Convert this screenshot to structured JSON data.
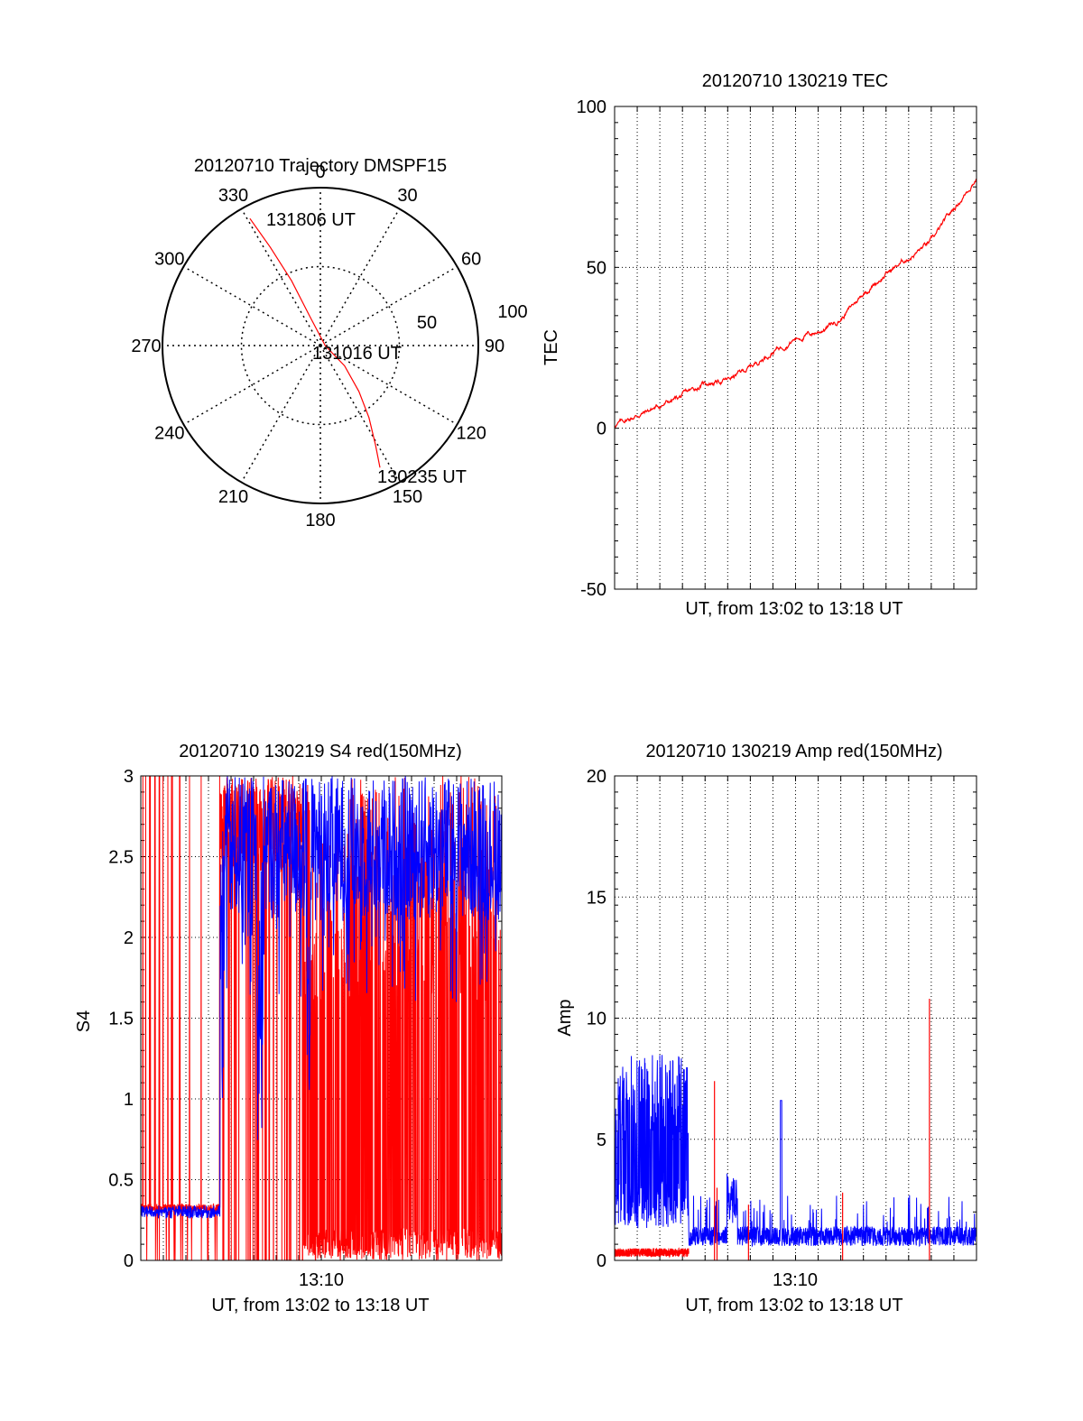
{
  "colors": {
    "red": "#ff0000",
    "blue": "#0000ff",
    "axis": "#000000",
    "background": "#ffffff"
  },
  "chart_data": [
    {
      "type": "polar",
      "title": "20120710 Trajectory DMSPF15",
      "angle_labels": [
        "0",
        "30",
        "60",
        "90",
        "120",
        "150",
        "180",
        "210",
        "240",
        "270",
        "300",
        "330"
      ],
      "radial_labels": [
        "50",
        "100"
      ],
      "rlim": [
        0,
        100
      ],
      "grid": true,
      "series": [
        {
          "color": "red",
          "azimuth": [
            154,
            151,
            146,
            140,
            130,
            90,
            340,
            336,
            333,
            331
          ],
          "zenith": [
            86,
            72,
            55,
            38,
            20,
            3,
            20,
            45,
            70,
            92
          ]
        }
      ],
      "annotations": [
        {
          "text": "131806 UT",
          "azimuth": 331,
          "zenith": 92
        },
        {
          "text": "131016 UT",
          "azimuth": 90,
          "zenith": 3
        },
        {
          "text": "130235 UT",
          "azimuth": 154,
          "zenith": 86
        }
      ]
    },
    {
      "type": "line",
      "title": "20120710 130219 TEC",
      "xlabel": "UT, from 13:02 to 13:18 UT",
      "ylabel": "TEC",
      "xlim": [
        "13:02",
        "13:18"
      ],
      "ylim": [
        -50,
        100
      ],
      "yticks": [
        "-50",
        "0",
        "50",
        "100"
      ],
      "grid": true,
      "series": [
        {
          "color": "red",
          "x": [
            "13:02",
            "13:03",
            "13:04",
            "13:05",
            "13:06",
            "13:07",
            "13:08",
            "13:09",
            "13:10",
            "13:11",
            "13:12",
            "13:13",
            "13:14",
            "13:15",
            "13:16",
            "13:17",
            "13:18"
          ],
          "values": [
            1,
            4,
            7,
            10,
            14,
            15,
            19,
            24,
            28,
            30,
            34,
            42,
            48,
            53,
            58,
            68,
            78
          ]
        }
      ]
    },
    {
      "type": "line",
      "title": "20120710 130219 S4 red(150MHz)",
      "xlabel": "UT, from 13:02 to 13:18 UT",
      "ylabel": "S4",
      "xlim": [
        "13:02",
        "13:18"
      ],
      "xticks": [
        "13:10"
      ],
      "ylim": [
        0,
        3
      ],
      "yticks": [
        "0",
        "0.5",
        "1",
        "1.5",
        "2",
        "2.5",
        "3"
      ],
      "grid": true,
      "series": [
        {
          "color": "red",
          "description_values": "spiky, frequent 0–3 excursions across whole interval"
        },
        {
          "color": "blue",
          "x": [
            "13:02",
            "13:05:30",
            "13:06",
            "13:10",
            "13:14",
            "13:18"
          ],
          "values": [
            0.3,
            0.35,
            2.7,
            2.5,
            2.6,
            2.4
          ]
        }
      ]
    },
    {
      "type": "line",
      "title": "20120710 130219 Amp red(150MHz)",
      "xlabel": "UT, from 13:02 to 13:18 UT",
      "ylabel": "Amp",
      "xlim": [
        "13:02",
        "13:18"
      ],
      "xticks": [
        "13:10"
      ],
      "ylim": [
        0,
        20
      ],
      "yticks": [
        "0",
        "5",
        "10",
        "15",
        "20"
      ],
      "grid": true,
      "series": [
        {
          "color": "blue",
          "x": [
            "13:02",
            "13:05:15",
            "13:05:20",
            "13:18"
          ],
          "values": [
            5,
            5,
            1,
            1
          ]
        },
        {
          "color": "red",
          "x": [
            "13:02",
            "13:05:15",
            "13:06",
            "13:16"
          ],
          "values": [
            0.2,
            0.2,
            7.4,
            10.8
          ]
        }
      ]
    }
  ]
}
